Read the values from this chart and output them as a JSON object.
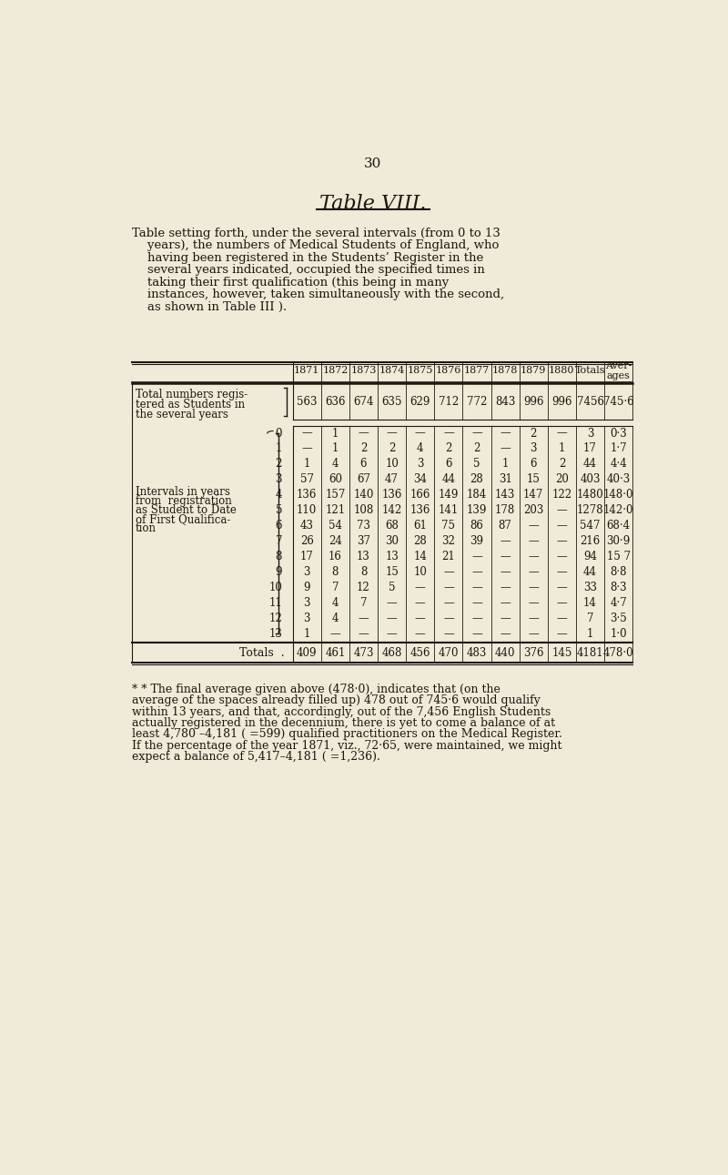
{
  "bg_color": "#f0ead8",
  "page_number": "30",
  "title_prefix": "T",
  "title_small": "able",
  "title_roman": " VIII.",
  "description_lines": [
    [
      "T",
      "able",
      " setting forth, under the several intervals (from 0 to 13"
    ],
    [
      "    years), the ",
      "numbers",
      " of ",
      "Medical Students",
      " of ",
      "England",
      ", who"
    ],
    [
      "    having been ",
      "registered",
      " in the ",
      "Students’ Register",
      " in the"
    ],
    [
      "    several years indicated, occupied the specified times in"
    ],
    [
      "    taking their ",
      "first qualification",
      " (this being in many"
    ],
    [
      "    instances, however, taken simultaneously with the ",
      "second",
      ","
    ],
    [
      "    as shown in Table III )."
    ]
  ],
  "col_headers": [
    "1871",
    "1872",
    "1873",
    "1874",
    "1875",
    "1876",
    "1877",
    "1878",
    "1879",
    "1880",
    "Totals",
    "Aver-\nages"
  ],
  "reg_row_label": [
    "Total numbers regis-",
    "tered as Students in",
    "the several years"
  ],
  "reg_row_values": [
    "563",
    "636",
    "674",
    "635",
    "629",
    "712",
    "772",
    "843",
    "996",
    "996",
    "7456",
    "745·6"
  ],
  "interval_row_label_lines": [
    "Intervals in years",
    "from  registration",
    "as Student to Date",
    "of First Qualifica-",
    "tion"
  ],
  "interval_label_attach_row": 5,
  "intervals": [
    0,
    1,
    2,
    3,
    4,
    5,
    6,
    7,
    8,
    9,
    10,
    11,
    12,
    13
  ],
  "interval_data": {
    "0": [
      "—",
      "1",
      "—",
      "—",
      "—",
      "—",
      "—",
      "—",
      "2",
      "—",
      "3",
      "0·3"
    ],
    "1": [
      "—",
      "1",
      "2",
      "2",
      "4",
      "2",
      "2",
      "—",
      "3",
      "1",
      "17",
      "1·7"
    ],
    "2": [
      "1",
      "4",
      "6",
      "10",
      "3",
      "6",
      "5",
      "1",
      "6",
      "2",
      "44",
      "4·4"
    ],
    "3": [
      "57",
      "60",
      "67",
      "47",
      "34",
      "44",
      "28",
      "31",
      "15",
      "20",
      "403",
      "40·3"
    ],
    "4": [
      "136",
      "157",
      "140",
      "136",
      "166",
      "149",
      "184",
      "143",
      "147",
      "122",
      "1480",
      "148·0"
    ],
    "5": [
      "110",
      "121",
      "108",
      "142",
      "136",
      "141",
      "139",
      "178",
      "203",
      "—",
      "1278",
      "142·0"
    ],
    "6": [
      "43",
      "54",
      "73",
      "68",
      "61",
      "75",
      "86",
      "87",
      "—",
      "—",
      "547",
      "68·4"
    ],
    "7": [
      "26",
      "24",
      "37",
      "30",
      "28",
      "32",
      "39",
      "—",
      "—",
      "—",
      "216",
      "30·9"
    ],
    "8": [
      "17",
      "16",
      "13",
      "13",
      "14",
      "21",
      "—",
      "—",
      "—",
      "—",
      "94",
      "15 7"
    ],
    "9": [
      "3",
      "8",
      "8",
      "15",
      "10",
      "—",
      "—",
      "—",
      "—",
      "—",
      "44",
      "8·8"
    ],
    "10": [
      "9",
      "7",
      "12",
      "5",
      "—",
      "—",
      "—",
      "—",
      "—",
      "—",
      "33",
      "8·3"
    ],
    "11": [
      "3",
      "4",
      "7",
      "—",
      "—",
      "—",
      "—",
      "—",
      "—",
      "—",
      "14",
      "4·7"
    ],
    "12": [
      "3",
      "4",
      "—",
      "—",
      "—",
      "—",
      "—",
      "—",
      "—",
      "—",
      "7",
      "3·5"
    ],
    "13": [
      "1",
      "—",
      "—",
      "—",
      "—",
      "—",
      "—",
      "—",
      "—",
      "—",
      "1",
      "1·0"
    ]
  },
  "totals_row": [
    "409",
    "461",
    "473",
    "468",
    "456",
    "470",
    "483",
    "440",
    "376",
    "145",
    "4181",
    "478·0"
  ],
  "footnote_lines": [
    "* * The final average given above (478·0), indicates that (on the",
    "average of the spaces already filled up) 478 out of 745·6 would qualify",
    "within 13 years, and that, accordingly, out of the 7,456 English Students",
    "actually registered in the decennium, there is yet to come a balance of at",
    "least 4,780 –4,181 ( =599) qualified practitioners on the Medical Register.",
    "If the percentage of the year 1871, viz., 72·65, were maintained, we might",
    "expect a balance of 5,417–4,181 ( =1,236)."
  ],
  "text_color": "#1a1810",
  "line_color": "#1a1810"
}
